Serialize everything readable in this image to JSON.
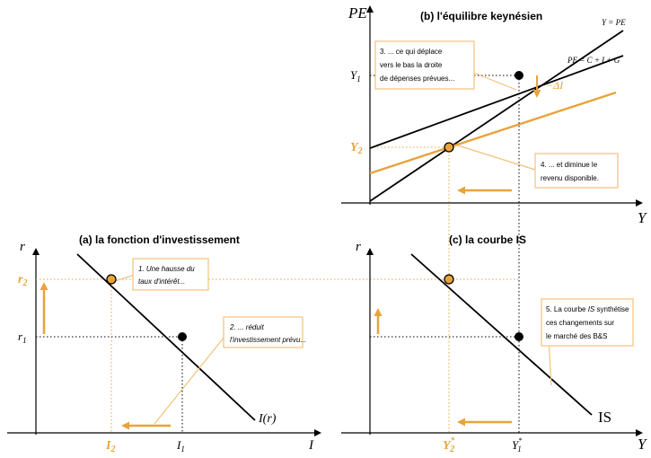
{
  "colors": {
    "accent": "#E8A33A",
    "line": "#000000",
    "box_fill": "#FFFFFF",
    "box_border": "#F2C27A"
  },
  "panel_b": {
    "title": "(b) l'équilibre keynésien",
    "y_axis_label": "PE",
    "x_axis_label": "Y",
    "tick_y1": "Y",
    "tick_y1_sub": "1",
    "tick_y2": "Y",
    "tick_y2_sub": "2",
    "label_45": "Y = PE",
    "label_pe": "PE = C + I + G",
    "delta_label": "−ΔI",
    "note3": [
      "3. ... ce qui déplace",
      "vers le bas la droite",
      "de dépenses prévues..."
    ],
    "note4": [
      "4. ... et diminue le",
      "revenu disponible."
    ]
  },
  "panel_a": {
    "title": "(a) la fonction d'investissement",
    "y_axis_label": "r",
    "x_axis_label": "I",
    "tick_r1": "r",
    "tick_r1_sub": "1",
    "tick_r2": "r",
    "tick_r2_sub": "2",
    "tick_i1": "I",
    "tick_i1_sub": "1",
    "tick_i2": "I",
    "tick_i2_sub": "2",
    "curve_label": "I(r)",
    "note1": [
      "1. Une hausse du",
      "taux d'intérêt..."
    ],
    "note2": [
      "2. ... réduit",
      "l'investissement prévu..."
    ]
  },
  "panel_c": {
    "title": "(c) la courbe IS",
    "y_axis_label": "r",
    "x_axis_label": "Y",
    "tick_y2": "Y",
    "tick_y2_sub": "2",
    "tick_y1": "Y",
    "tick_y1_sub": "1",
    "tick_sup": "*",
    "curve_label": "IS",
    "note5": [
      [
        {
          "t": "5. La courbe ",
          "i": false
        },
        {
          "t": "IS",
          "i": true
        },
        {
          "t": " synthétise",
          "i": false
        }
      ],
      [
        {
          "t": "ces changements sur",
          "i": false
        }
      ],
      [
        {
          "t": "le marché des B&S",
          "i": false
        }
      ]
    ]
  }
}
